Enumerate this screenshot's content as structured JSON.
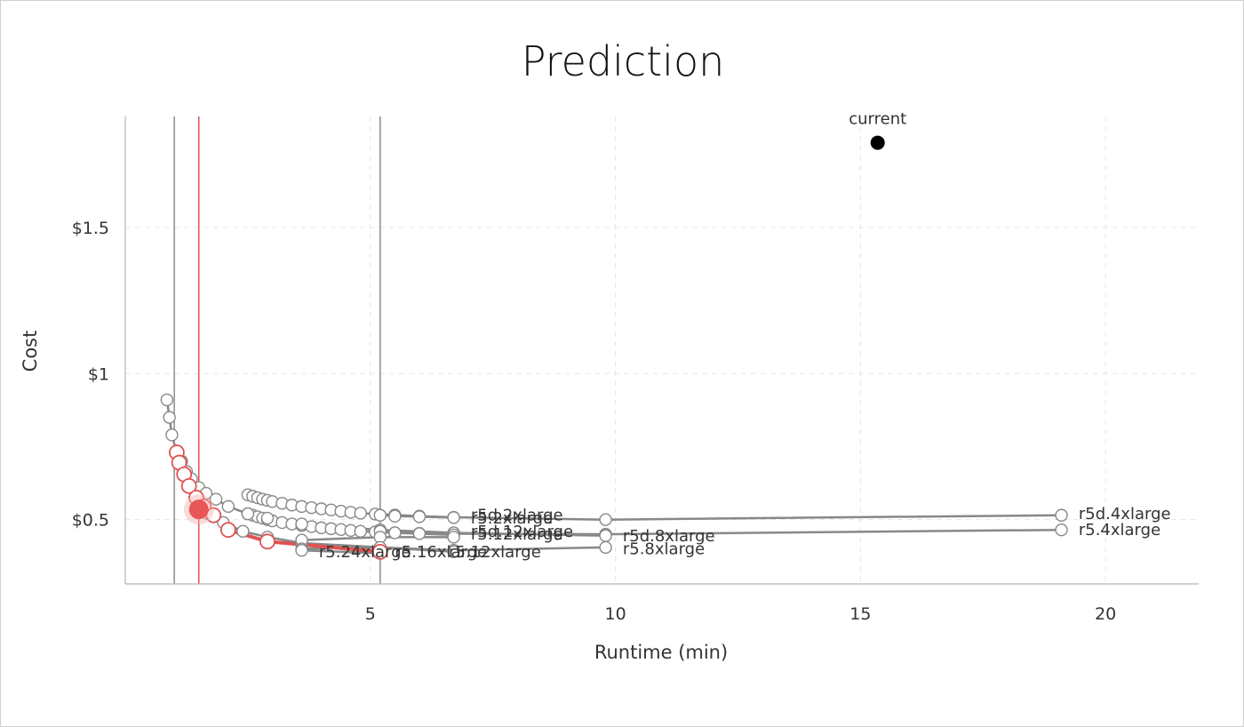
{
  "chart_data": {
    "type": "line",
    "title": "Prediction",
    "xlabel": "Runtime (min)",
    "ylabel": "Cost",
    "xlim": [
      0.0,
      21.9
    ],
    "ylim": [
      0.28,
      1.88
    ],
    "x_ticks": [
      5,
      10,
      15,
      20
    ],
    "y_ticks": [
      0.5,
      1.0,
      1.5
    ],
    "y_tick_labels": [
      "$0.5",
      "$1",
      "$1.5"
    ],
    "grid": true,
    "vertical_lines": [
      {
        "x": 1.0,
        "color": "#8c8c8c"
      },
      {
        "x": 1.5,
        "color": "#e05252"
      },
      {
        "x": 5.2,
        "color": "#8c8c8c"
      }
    ],
    "current_point": {
      "label": "current",
      "x": 15.35,
      "y": 1.79
    },
    "highlight_point": {
      "x": 1.5,
      "y": 0.535
    },
    "series": [
      {
        "name": "r5d.4xlarge",
        "color": "#888888",
        "x": [
          2.5,
          2.6,
          2.7,
          2.8,
          2.9,
          3.0,
          3.2,
          3.4,
          3.6,
          3.8,
          4.0,
          4.2,
          4.4,
          4.6,
          4.8,
          5.1,
          5.5,
          6.0,
          6.7,
          9.8,
          19.1
        ],
        "y": [
          0.585,
          0.58,
          0.575,
          0.57,
          0.566,
          0.562,
          0.556,
          0.55,
          0.545,
          0.541,
          0.537,
          0.533,
          0.529,
          0.525,
          0.522,
          0.519,
          0.516,
          0.512,
          0.508,
          0.5,
          0.515
        ]
      },
      {
        "name": "r5.4xlarge",
        "color": "#888888",
        "x": [
          2.5,
          2.6,
          2.7,
          2.8,
          2.9,
          3.0,
          3.2,
          3.4,
          3.6,
          3.8,
          4.0,
          4.2,
          4.4,
          4.6,
          4.8,
          5.1,
          5.5,
          6.0,
          6.7,
          9.8,
          19.1
        ],
        "y": [
          0.52,
          0.515,
          0.51,
          0.505,
          0.5,
          0.496,
          0.49,
          0.485,
          0.48,
          0.476,
          0.472,
          0.469,
          0.466,
          0.463,
          0.46,
          0.458,
          0.455,
          0.453,
          0.452,
          0.45,
          0.465
        ]
      },
      {
        "name": "r5d.8xlarge",
        "color": "#888888",
        "x": [
          0.85,
          0.9,
          0.95,
          1.05,
          1.15,
          1.25,
          1.35,
          1.5,
          1.65,
          1.85,
          2.1,
          2.5,
          2.9,
          3.6,
          5.2,
          6.7,
          9.8
        ],
        "y": [
          0.91,
          0.85,
          0.79,
          0.73,
          0.7,
          0.665,
          0.64,
          0.61,
          0.59,
          0.57,
          0.545,
          0.52,
          0.505,
          0.485,
          0.465,
          0.455,
          0.445
        ]
      },
      {
        "name": "r5.8xlarge",
        "color": "#888888",
        "x": [
          1.5,
          1.7,
          2.0,
          2.4,
          2.9,
          3.6,
          5.2,
          6.7,
          9.8
        ],
        "y": [
          0.56,
          0.52,
          0.49,
          0.46,
          0.44,
          0.42,
          0.405,
          0.395,
          0.405
        ]
      },
      {
        "name": "r5d.2xlarge",
        "color": "#888888",
        "x": [
          5.2,
          5.5,
          6.0,
          6.7
        ],
        "y": [
          0.515,
          0.512,
          0.51,
          0.507
        ]
      },
      {
        "name": "r5.2xlarge",
        "color": "#888888",
        "x": [
          5.2,
          5.5,
          6.0,
          6.7
        ],
        "y": [
          0.46,
          0.455,
          0.452,
          0.448
        ]
      },
      {
        "name": "r5d.12xlarge",
        "color": "#888888",
        "x": [
          3.6,
          5.2,
          6.7
        ],
        "y": [
          0.43,
          0.44,
          0.44
        ]
      },
      {
        "name": "r5.12xlarge",
        "color": "#888888",
        "x": [
          3.6,
          5.2,
          6.7
        ],
        "y": [
          0.4,
          0.405,
          0.39
        ]
      },
      {
        "name": "r5.24xlarge",
        "color": "#888888",
        "x": [
          3.6,
          5.2
        ],
        "y": [
          0.395,
          0.385
        ]
      },
      {
        "name": "r5.16xlarge",
        "color": "#e05252",
        "x": [
          1.05,
          1.1,
          1.2,
          1.3,
          1.45,
          1.6,
          1.8,
          2.1,
          2.9,
          5.2
        ],
        "y": [
          0.73,
          0.695,
          0.655,
          0.615,
          0.575,
          0.545,
          0.515,
          0.465,
          0.425,
          0.39
        ]
      }
    ],
    "labels": [
      {
        "text": "r5d.4xlarge",
        "x": 19.45,
        "y": 0.52,
        "anchor": "start"
      },
      {
        "text": "r5.4xlarge",
        "x": 19.45,
        "y": 0.465,
        "anchor": "start"
      },
      {
        "text": "r5d.8xlarge",
        "x": 10.15,
        "y": 0.445,
        "anchor": "start"
      },
      {
        "text": "r5.8xlarge",
        "x": 10.15,
        "y": 0.4,
        "anchor": "start"
      },
      {
        "text": "r5d.2xlarge",
        "x": 7.05,
        "y": 0.515,
        "anchor": "start"
      },
      {
        "text": "r5.2xlarge",
        "x": 7.05,
        "y": 0.505,
        "anchor": "start"
      },
      {
        "text": "r5d.12xlarge",
        "x": 7.05,
        "y": 0.46,
        "anchor": "start"
      },
      {
        "text": "r5.12xlarge",
        "x": 7.05,
        "y": 0.45,
        "anchor": "start"
      },
      {
        "text": "r5.24xlarge",
        "x": 3.95,
        "y": 0.39,
        "anchor": "start"
      },
      {
        "text": "r5.16xlarge",
        "x": 5.5,
        "y": 0.39,
        "anchor": "start"
      },
      {
        "text": "r5.12xlarge",
        "x": 6.6,
        "y": 0.39,
        "anchor": "start"
      }
    ]
  }
}
